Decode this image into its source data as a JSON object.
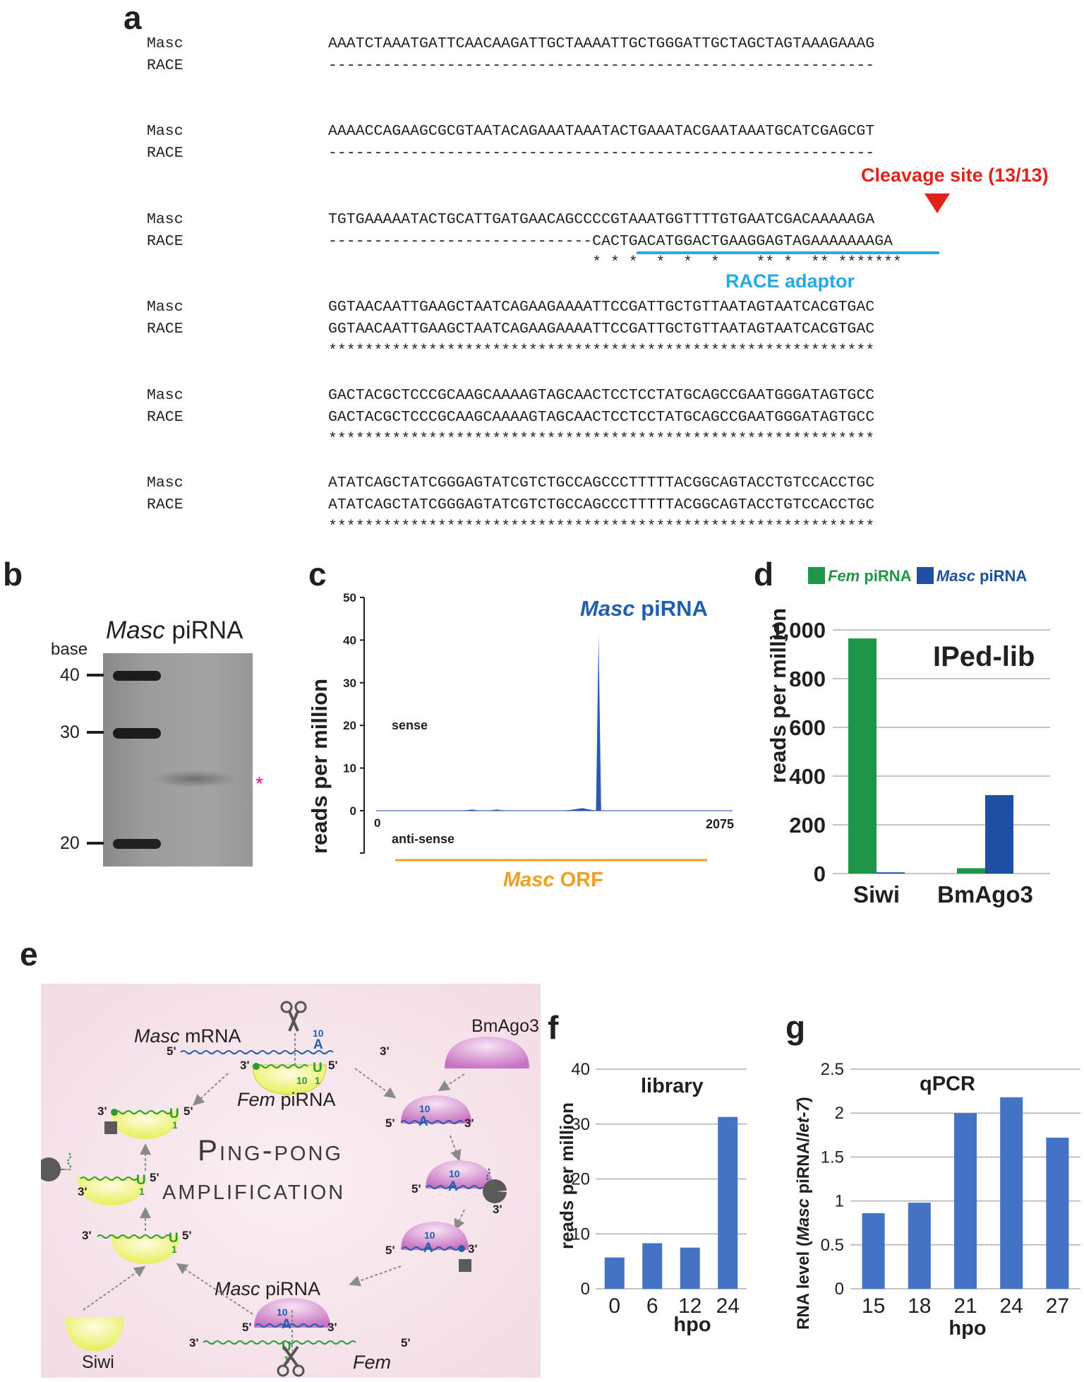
{
  "panel_labels": {
    "a": "a",
    "b": "b",
    "c": "c",
    "d": "d",
    "e": "e",
    "f": "f",
    "g": "g"
  },
  "panel_a": {
    "names": {
      "top": "Masc",
      "bottom": "RACE"
    },
    "blocks": [
      {
        "masc": "AAATCTAAATGATTCAACAAGATTGCTAAAATTGCTGGGATTGCTAGCTAGTAAAGAAAG",
        "race": "------------------------------------------------------------",
        "stars": ""
      },
      {
        "masc": "AAAACCAGAAGCGCGTAATACAGAAATAAATACTGAAATACGAATAAATGCATCGAGCGT",
        "race": "------------------------------------------------------------",
        "stars": ""
      },
      {
        "masc": "TGTGAAAAATACTGCATTGATGAACAGCCCCGTAAATGGTTTTGTGAATCGACAAAAAGA",
        "race_dashes": "-----------------------------",
        "race_seq": "CACTGACATGGACTGAAGGAGTAGAAAAAAAGA",
        "stars": "                             * * *  *  *  *    ** *  ** *******"
      },
      {
        "masc": "GGTAACAATTGAAGCTAATCAGAAGAAAATTCCGATTGCTGTTAATAGTAATCACGTGAC",
        "race": "GGTAACAATTGAAGCTAATCAGAAGAAAATTCCGATTGCTGTTAATAGTAATCACGTGAC",
        "stars": "************************************************************"
      },
      {
        "masc": "GACTACGCTCCCGCAAGCAAAAGTAGCAACTCCTCCTATGCAGCCGAATGGGATAGTGCC",
        "race": "GACTACGCTCCCGCAAGCAAAAGTAGCAACTCCTCCTATGCAGCCGAATGGGATAGTGCC",
        "stars": "************************************************************"
      },
      {
        "masc": "ATATCAGCTATCGGGAGTATCGTCTGCCAGCCCTTTTTACGGCAGTACCTGTCCACCTGC",
        "race": "ATATCAGCTATCGGGAGTATCGTCTGCCAGCCCTTTTTACGGCAGTACCTGTCCACCTGC",
        "stars": "************************************************************"
      }
    ],
    "cleavage_label": "Cleavage site (13/13)",
    "adaptor_label": "RACE adaptor",
    "colors": {
      "red": "#e2231a",
      "cyan": "#27a9e1"
    }
  },
  "panel_b": {
    "title_italic": "Masc",
    "title_rest": " piRNA",
    "axis_label": "base",
    "markers": [
      "40",
      "30",
      "20"
    ],
    "asterisk": "*"
  },
  "panel_c": {
    "ylabel": "reads per million",
    "yticks": [
      "50",
      "40",
      "30",
      "20",
      "10",
      "0"
    ],
    "x_start": "0",
    "x_end": "2075",
    "sense": "sense",
    "antisense": "anti-sense",
    "peak_label_italic": "Masc",
    "peak_label_rest": " piRNA",
    "orf_italic": "Masc",
    "orf_rest": " ORF",
    "colors": {
      "blue": "#1f5fad",
      "orange": "#f0a020"
    }
  },
  "panel_d": {
    "legend": [
      {
        "italic": "Fem",
        "rest": " piRNA",
        "color": "#1e9547"
      },
      {
        "italic": "Masc",
        "rest": " piRNA",
        "color": "#1f4fa3"
      }
    ],
    "inset_title": "IPed-lib",
    "ylabel": "reads per million",
    "yticks": [
      "1,000",
      "800",
      "600",
      "400",
      "200",
      "0"
    ]
  },
  "panel_e": {
    "title_line1": "Ping-pong",
    "title_line2": "amplification",
    "masc_mrna_italic": "Masc",
    "masc_mrna_rest": " mRNA",
    "fem_pirna_italic": "Fem",
    "fem_pirna_rest": " piRNA",
    "masc_pirna_italic": "Masc",
    "masc_pirna_rest": " piRNA",
    "fem": "Fem",
    "bmago3": "BmAgo3",
    "siwi": "Siwi",
    "five": "5'",
    "three": "3'",
    "ten": "10",
    "one": "1",
    "A": "A",
    "U": "U"
  },
  "panel_f": {
    "inset_title": "library",
    "ylabel": "reads per million",
    "xlabel": "hpo",
    "yticks": [
      "40",
      "30",
      "20",
      "10",
      "0"
    ]
  },
  "panel_g": {
    "inset_title": "qPCR",
    "ylabel_pre": "RNA level (",
    "ylabel_it1": "Masc",
    "ylabel_mid": " piRNA/",
    "ylabel_it2": "let-7",
    "ylabel_post": ")",
    "xlabel": "hpo",
    "yticks": [
      "2.5",
      "2",
      "1.5",
      "1",
      "0.5",
      "0"
    ]
  },
  "chart_data": [
    {
      "type": "line",
      "panel": "c",
      "xlim": [
        0,
        2075
      ],
      "ylim": [
        0,
        50
      ],
      "x": [
        0,
        100,
        300,
        500,
        560,
        600,
        660,
        700,
        750,
        900,
        1100,
        1200,
        1280,
        1295,
        1310,
        1340,
        1500,
        1700,
        1900,
        2075
      ],
      "series": [
        {
          "values": [
            0,
            0,
            0,
            0,
            0.3,
            0,
            0,
            0.3,
            0,
            0,
            0,
            0.6,
            0,
            41,
            0,
            0,
            0,
            0,
            0,
            0
          ]
        }
      ]
    },
    {
      "type": "bar",
      "panel": "d",
      "categories": [
        "Siwi",
        "BmAgo3"
      ],
      "ylim": [
        0,
        1000
      ],
      "series": [
        {
          "name": "Fem piRNA",
          "values": [
            965,
            22
          ],
          "color": "#1e9547"
        },
        {
          "name": "Masc piRNA",
          "values": [
            5,
            322
          ],
          "color": "#1f4fa3"
        }
      ]
    },
    {
      "type": "bar",
      "panel": "f",
      "categories": [
        "0",
        "6",
        "12",
        "24"
      ],
      "ylim": [
        0,
        40
      ],
      "xlabel": "hpo",
      "ylabel": "reads per million",
      "values": [
        5.7,
        8.3,
        7.5,
        31.3
      ],
      "color": "#4472c4"
    },
    {
      "type": "bar",
      "panel": "g",
      "categories": [
        "15",
        "18",
        "21",
        "24",
        "27"
      ],
      "ylim": [
        0,
        2.5
      ],
      "xlabel": "hpo",
      "values": [
        0.86,
        0.98,
        2.0,
        2.18,
        1.72
      ],
      "color": "#4472c4"
    }
  ]
}
